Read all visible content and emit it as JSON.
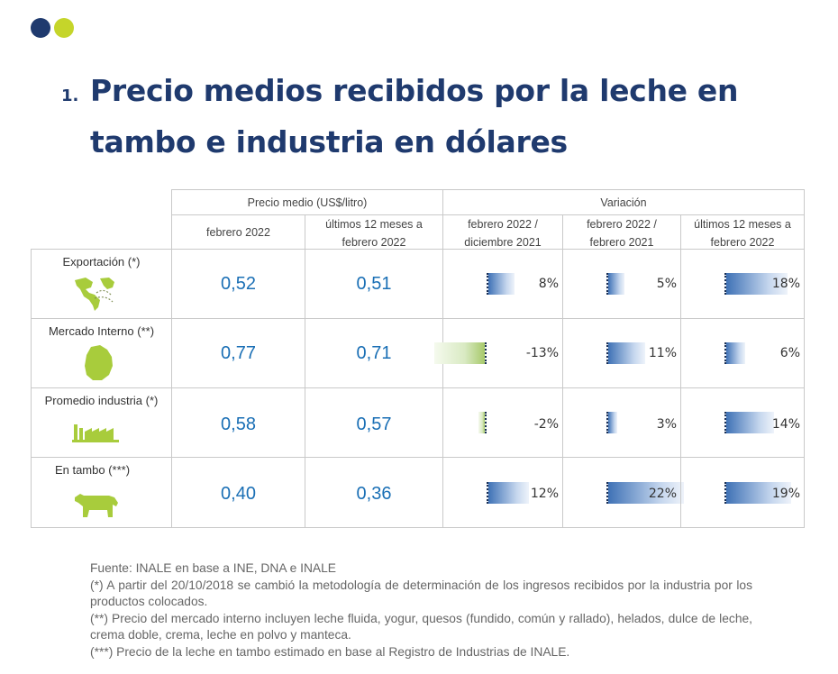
{
  "title": {
    "number": "1.",
    "text": "Precio medios recibidos por la leche en tambo e industria en dólares"
  },
  "table": {
    "group_headers": {
      "price": "Precio medio (US$/litro)",
      "variation": "Variación"
    },
    "columns": [
      "febrero 2022",
      "últimos 12 meses a febrero 2022",
      "febrero 2022 / diciembre 2021",
      "febrero 2022 / febrero 2021",
      "últimos 12 meses a febrero 2022"
    ],
    "rows": [
      {
        "label": "Exportación (*)",
        "icon": "world-map-americas-icon",
        "price_feb": "0,52",
        "price_12m": "0,51",
        "var": [
          {
            "text": "8%",
            "value": 8
          },
          {
            "text": "5%",
            "value": 5
          },
          {
            "text": "18%",
            "value": 18
          }
        ]
      },
      {
        "label": "Mercado Interno (**)",
        "icon": "uruguay-map-icon",
        "price_feb": "0,77",
        "price_12m": "0,71",
        "var": [
          {
            "text": "-13%",
            "value": -13
          },
          {
            "text": "11%",
            "value": 11
          },
          {
            "text": "6%",
            "value": 6
          }
        ]
      },
      {
        "label": "Promedio industria (*)",
        "icon": "factory-icon",
        "price_feb": "0,58",
        "price_12m": "0,57",
        "var": [
          {
            "text": "-2%",
            "value": -2
          },
          {
            "text": "3%",
            "value": 3
          },
          {
            "text": "14%",
            "value": 14
          }
        ]
      },
      {
        "label": "En tambo (***)",
        "icon": "cow-icon",
        "price_feb": "0,40",
        "price_12m": "0,36",
        "var": [
          {
            "text": "12%",
            "value": 12
          },
          {
            "text": "22%",
            "value": 22
          },
          {
            "text": "19%",
            "value": 19
          }
        ]
      }
    ]
  },
  "colors": {
    "title": "#1f3a6e",
    "price_text": "#1a6fb5",
    "positive_bar": "#3f72b6",
    "negative_bar": "#a7c96a",
    "icon_green": "#a8cc3c",
    "dot_navy": "#1f3a6e",
    "dot_lime": "#c5d52a"
  },
  "notes": {
    "source": "Fuente: INALE en base a INE, DNA e INALE",
    "note1": "(*) A partir del 20/10/2018 se cambió la metodología de determinación de los ingresos recibidos por la industria por los productos colocados.",
    "note2": "(**) Precio del mercado interno incluyen leche fluida, yogur, quesos (fundido, común y rallado), helados, dulce de leche, crema doble, crema, leche en polvo y manteca.",
    "note3": "(***) Precio de la leche en tambo estimado en base al Registro de Industrias de INALE."
  }
}
